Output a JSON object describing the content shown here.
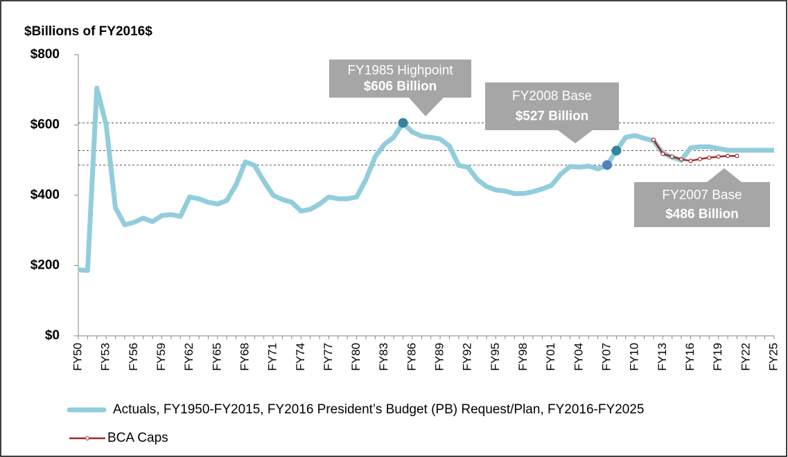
{
  "chart_data": {
    "type": "line",
    "title": "$Billions of FY2016$",
    "categories": [
      "FY50",
      null,
      null,
      "FY53",
      null,
      null,
      "FY56",
      null,
      null,
      "FY59",
      null,
      null,
      "FY62",
      null,
      null,
      "FY65",
      null,
      null,
      "FY68",
      null,
      null,
      "FY71",
      null,
      null,
      "FY74",
      null,
      null,
      "FY77",
      null,
      null,
      "FY80",
      null,
      null,
      "FY83",
      null,
      null,
      "FY86",
      null,
      null,
      "FY89",
      null,
      null,
      "FY92",
      null,
      null,
      "FY95",
      null,
      null,
      "FY98",
      null,
      null,
      "FY01",
      null,
      null,
      "FY04",
      null,
      null,
      "FY07",
      null,
      null,
      "FY10",
      null,
      null,
      "FY13",
      null,
      null,
      "FY16",
      null,
      null,
      "FY19",
      null,
      null,
      "FY22",
      null,
      null,
      "FY25"
    ],
    "series": [
      {
        "name": "Actuals, FY1950-FY2015, FY2016 President’s Budget (PB) Request/Plan, FY2016-FY2025",
        "color": "#92cddc",
        "values": [
          188,
          186,
          705,
          600,
          365,
          316,
          323,
          335,
          325,
          342,
          345,
          340,
          395,
          390,
          380,
          375,
          385,
          430,
          495,
          485,
          440,
          400,
          388,
          380,
          355,
          360,
          375,
          395,
          390,
          390,
          395,
          445,
          510,
          545,
          565,
          606,
          580,
          568,
          565,
          560,
          540,
          485,
          480,
          445,
          425,
          415,
          412,
          405,
          405,
          410,
          418,
          428,
          460,
          482,
          480,
          483,
          475,
          486,
          527,
          565,
          570,
          562,
          555,
          520,
          508,
          500,
          535,
          538,
          538,
          533,
          528,
          528,
          528,
          528,
          528,
          528
        ]
      },
      {
        "name": "BCA Caps",
        "color": "#a0282a",
        "values": [
          null,
          null,
          null,
          null,
          null,
          null,
          null,
          null,
          null,
          null,
          null,
          null,
          null,
          null,
          null,
          null,
          null,
          null,
          null,
          null,
          null,
          null,
          null,
          null,
          null,
          null,
          null,
          null,
          null,
          null,
          null,
          null,
          null,
          null,
          null,
          null,
          null,
          null,
          null,
          null,
          null,
          null,
          null,
          null,
          null,
          null,
          null,
          null,
          null,
          null,
          null,
          null,
          null,
          null,
          null,
          null,
          null,
          null,
          null,
          null,
          null,
          null,
          558,
          518,
          510,
          502,
          498,
          503,
          507,
          510,
          512,
          512,
          null,
          null,
          null,
          null
        ]
      }
    ],
    "ylim": [
      0,
      800
    ],
    "yticks": [
      {
        "value": 0,
        "label": "$0"
      },
      {
        "value": 200,
        "label": "$200"
      },
      {
        "value": 400,
        "label": "$400"
      },
      {
        "value": 600,
        "label": "$600"
      },
      {
        "value": 800,
        "label": "$800"
      }
    ],
    "annotations": [
      {
        "label": "FY1985 Highpoint",
        "value_label": "$606 Billion",
        "value": 606,
        "marker_color": "#31859c"
      },
      {
        "label": "FY2008 Base",
        "value_label": "$527 Billion",
        "value": 527,
        "marker_color": "#31859c"
      },
      {
        "label": "FY2007 Base",
        "value_label": "$486 Billion",
        "value": 486,
        "marker_color": "#4f81bd"
      }
    ]
  }
}
